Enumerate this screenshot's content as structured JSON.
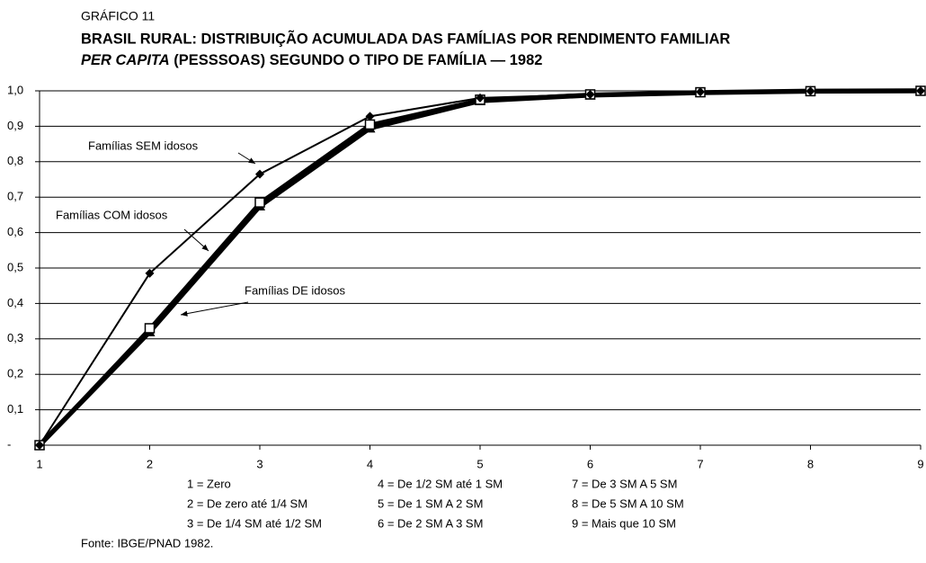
{
  "chart_data": {
    "type": "line",
    "label": "GRÁFICO 11",
    "title": "BRASIL RURAL: DISTRIBUIÇÃO ACUMULADA DAS FAMÍLIAS POR RENDIMENTO FAMILIAR",
    "title_italic": "PER CAPITA",
    "title_rest": " (PESSSOAS) SEGUNDO O TIPO DE FAMÍLIA — 1982",
    "x": [
      1,
      2,
      3,
      4,
      5,
      6,
      7,
      8,
      9
    ],
    "xlim": [
      1,
      9
    ],
    "xticks": [
      1,
      2,
      3,
      4,
      5,
      6,
      7,
      8,
      9
    ],
    "ylim": [
      0,
      1
    ],
    "yticks": [
      {
        "value": 0,
        "label": "-"
      },
      {
        "value": 0.1,
        "label": "0,1"
      },
      {
        "value": 0.2,
        "label": "0,2"
      },
      {
        "value": 0.3,
        "label": "0,3"
      },
      {
        "value": 0.4,
        "label": "0,4"
      },
      {
        "value": 0.5,
        "label": "0,5"
      },
      {
        "value": 0.6,
        "label": "0,6"
      },
      {
        "value": 0.7,
        "label": "0,7"
      },
      {
        "value": 0.8,
        "label": "0,8"
      },
      {
        "value": 0.9,
        "label": "0,9"
      },
      {
        "value": 1,
        "label": "1,0"
      }
    ],
    "grid": true,
    "series": [
      {
        "name": "Famílias SEM idosos",
        "color": "#000000",
        "marker": "diamond",
        "values": [
          0,
          0.485,
          0.765,
          0.928,
          0.98,
          0.99,
          0.997,
          0.999,
          1.0
        ]
      },
      {
        "name": "Famílias COM idosos",
        "color": "#000000",
        "marker": "square",
        "values": [
          0,
          0.33,
          0.685,
          0.905,
          0.975,
          0.99,
          0.996,
          0.999,
          1.0
        ]
      },
      {
        "name": "Famílias DE idosos",
        "color": "#000000",
        "marker": "triangle",
        "values": [
          0,
          0.32,
          0.675,
          0.895,
          0.972,
          0.988,
          0.995,
          0.999,
          1.0
        ]
      }
    ],
    "x_key": [
      "1 = Zero",
      "2 = De zero até 1/4 SM",
      "3 = De 1/4 SM até 1/2 SM",
      "4 = De 1/2 SM até 1 SM",
      "5 = De 1 SM A 2 SM",
      "6 = De 2 SM A 3 SM",
      "7 = De 3 SM A 5 SM",
      "8 = De 5 SM A 10 SM",
      "9 = Mais que 10 SM"
    ],
    "source": "Fonte: IBGE/PNAD 1982."
  }
}
